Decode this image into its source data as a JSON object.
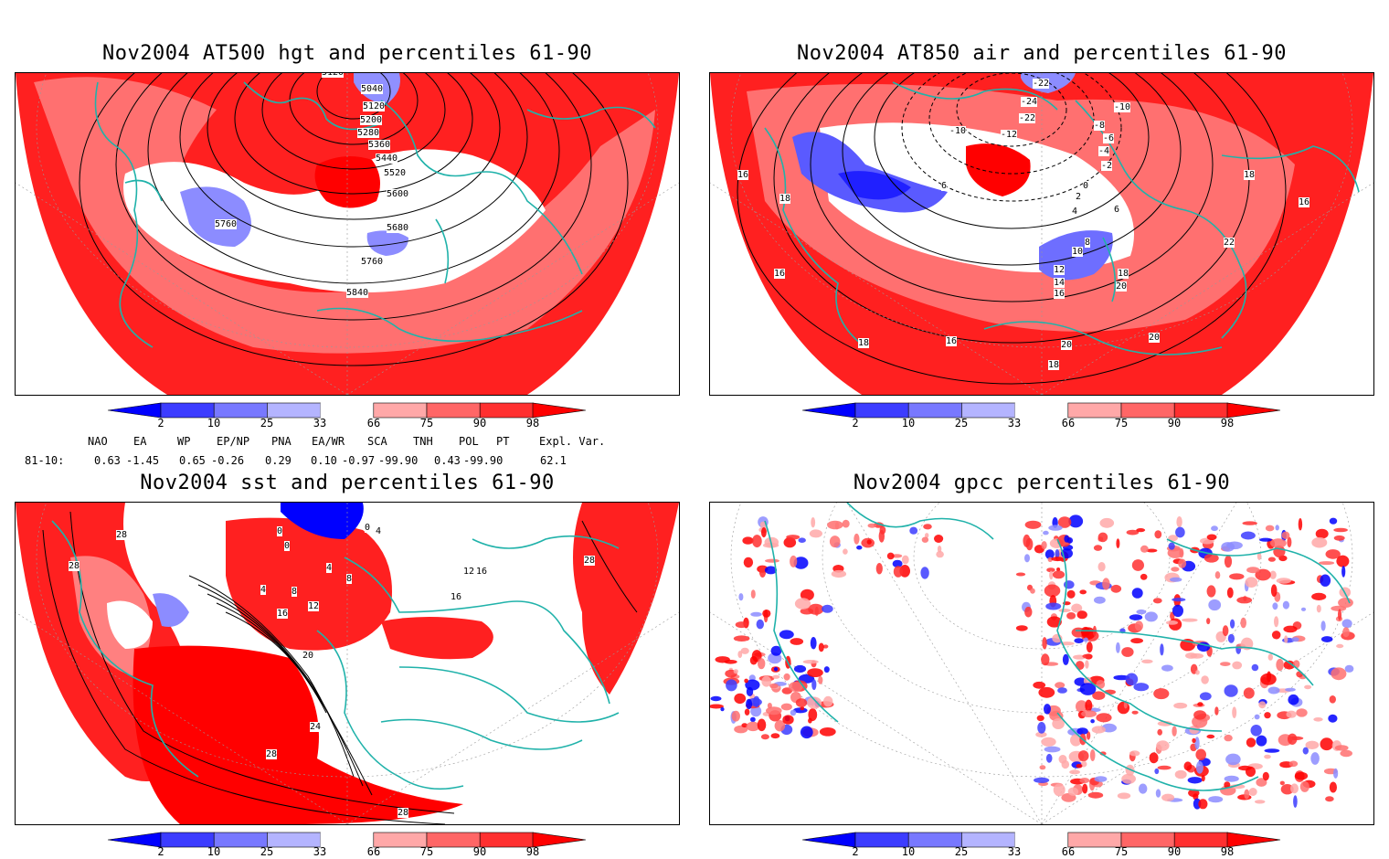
{
  "panels": {
    "hgt": {
      "title": "Nov2004 AT500 hgt and percentiles 61-90",
      "contour_labels": [
        "5120",
        "5040",
        "5120",
        "5200",
        "5280",
        "5360",
        "5440",
        "5520",
        "5600",
        "5680",
        "5760",
        "5760",
        "5840"
      ]
    },
    "air": {
      "title": "Nov2004 AT850 air and percentiles 61-90",
      "contour_labels": [
        "-22",
        "-24",
        "-22",
        "-12",
        "-10",
        "-10",
        "-8",
        "-6",
        "-4",
        "-2",
        "0",
        "2",
        "4",
        "6",
        "6",
        "8",
        "10",
        "12",
        "14",
        "16",
        "18",
        "18",
        "20",
        "22",
        "16",
        "16",
        "18",
        "16",
        "18",
        "20",
        "20",
        "18",
        "16"
      ]
    },
    "sst": {
      "title": "Nov2004 sst and percentiles 61-90",
      "contour_labels": [
        "28",
        "28",
        "0",
        "0",
        "4",
        "0",
        "4",
        "4",
        "8",
        "8",
        "12",
        "12",
        "16",
        "16",
        "16",
        "20",
        "24",
        "28",
        "28",
        "28"
      ]
    },
    "gpcc": {
      "title": "Nov2004 gpcc percentiles 61-90"
    }
  },
  "colorbar": {
    "labels": [
      "2",
      "10",
      "25",
      "33",
      "66",
      "75",
      "90",
      "98"
    ],
    "colors": [
      "#0000ff",
      "#3c3cff",
      "#7878ff",
      "#b4b4ff",
      "#ffffff",
      "#ffa8a8",
      "#ff6666",
      "#ff3030",
      "#ff0000"
    ]
  },
  "indices": {
    "header": [
      "NAO",
      "EA",
      "WP",
      "EP/NP",
      "PNA",
      "EA/WR",
      "SCA",
      "TNH",
      "POL",
      "PT",
      "Expl. Var."
    ],
    "row_label": "81-10:",
    "values": [
      "0.63",
      "-1.45",
      "0.65",
      "-0.26",
      "0.29",
      "0.10",
      "-0.97",
      "-99.90",
      "0.43",
      "-99.90",
      "62.1"
    ]
  }
}
